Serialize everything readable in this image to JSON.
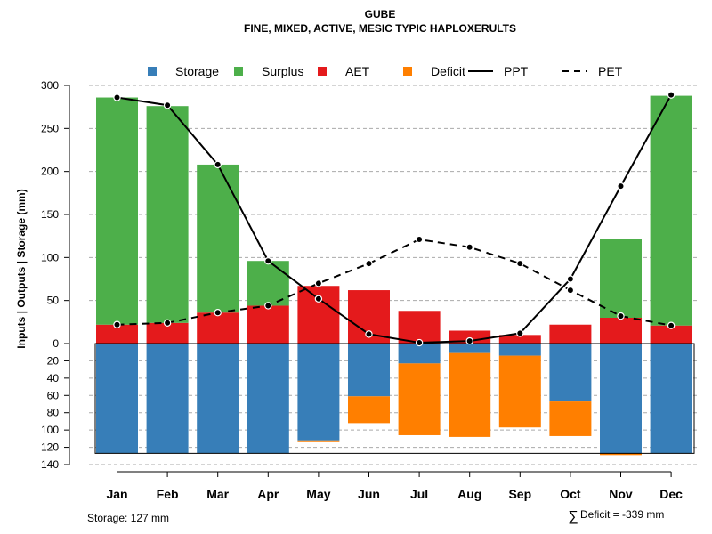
{
  "chart_data": {
    "type": "bar",
    "title": "GUBE",
    "subtitle": "FINE, MIXED, ACTIVE, MESIC TYPIC HAPLOXERULTS",
    "ylabel": "Inputs | Outputs | Storage     (mm)",
    "categories": [
      "Jan",
      "Feb",
      "Mar",
      "Apr",
      "May",
      "Jun",
      "Jul",
      "Aug",
      "Sep",
      "Oct",
      "Nov",
      "Dec"
    ],
    "upper_ylim": [
      0,
      300
    ],
    "upper_ticks": [
      "0",
      "50",
      "100",
      "150",
      "200",
      "250",
      "300"
    ],
    "upper_tick_values": [
      0,
      50,
      100,
      150,
      200,
      250,
      300
    ],
    "lower_ylim": [
      0,
      140
    ],
    "lower_ticks": [
      "20",
      "40",
      "60",
      "80",
      "100",
      "120",
      "140"
    ],
    "lower_tick_values": [
      20,
      40,
      60,
      80,
      100,
      120,
      140
    ],
    "grid": true,
    "legend_position": "top",
    "legend": [
      {
        "label": "Storage",
        "kind": "square",
        "color": "#377EB8"
      },
      {
        "label": "Surplus",
        "kind": "square",
        "color": "#4DAF4A"
      },
      {
        "label": "AET",
        "kind": "square",
        "color": "#E41A1C"
      },
      {
        "label": "Deficit",
        "kind": "square",
        "color": "#FF7F00"
      },
      {
        "label": "PPT",
        "kind": "solid-line",
        "color": "#000000"
      },
      {
        "label": "PET",
        "kind": "dashed-line",
        "color": "#000000"
      }
    ],
    "series": [
      {
        "name": "AET",
        "color": "#E41A1C",
        "values": [
          22,
          24,
          36,
          44,
          67,
          62,
          38,
          15,
          10,
          22,
          30,
          21
        ]
      },
      {
        "name": "Surplus",
        "color": "#4DAF4A",
        "values": [
          264,
          252,
          172,
          52,
          0,
          0,
          0,
          0,
          0,
          0,
          92,
          267
        ]
      },
      {
        "name": "PPT",
        "color": "#000000",
        "values": [
          286,
          277,
          208,
          96,
          52,
          11,
          1,
          3,
          12,
          75,
          183,
          289
        ]
      },
      {
        "name": "PET",
        "color": "#000000",
        "values": [
          22,
          24,
          36,
          44,
          70,
          93,
          121,
          112,
          93,
          62,
          32,
          21
        ]
      },
      {
        "name": "Storage",
        "color": "#377EB8",
        "values": [
          127,
          127,
          127,
          127,
          112,
          61,
          23,
          11,
          14,
          67,
          127,
          127
        ]
      },
      {
        "name": "Deficit",
        "color": "#FF7F00",
        "values": [
          0,
          0,
          0,
          0,
          2,
          31,
          83,
          97,
          83,
          40,
          2,
          0
        ]
      }
    ],
    "storage_capacity": 127,
    "annotations": {
      "storage": "Storage: 127 mm",
      "deficit_symbol": "∑",
      "deficit": "Deficit = -339 mm"
    }
  }
}
